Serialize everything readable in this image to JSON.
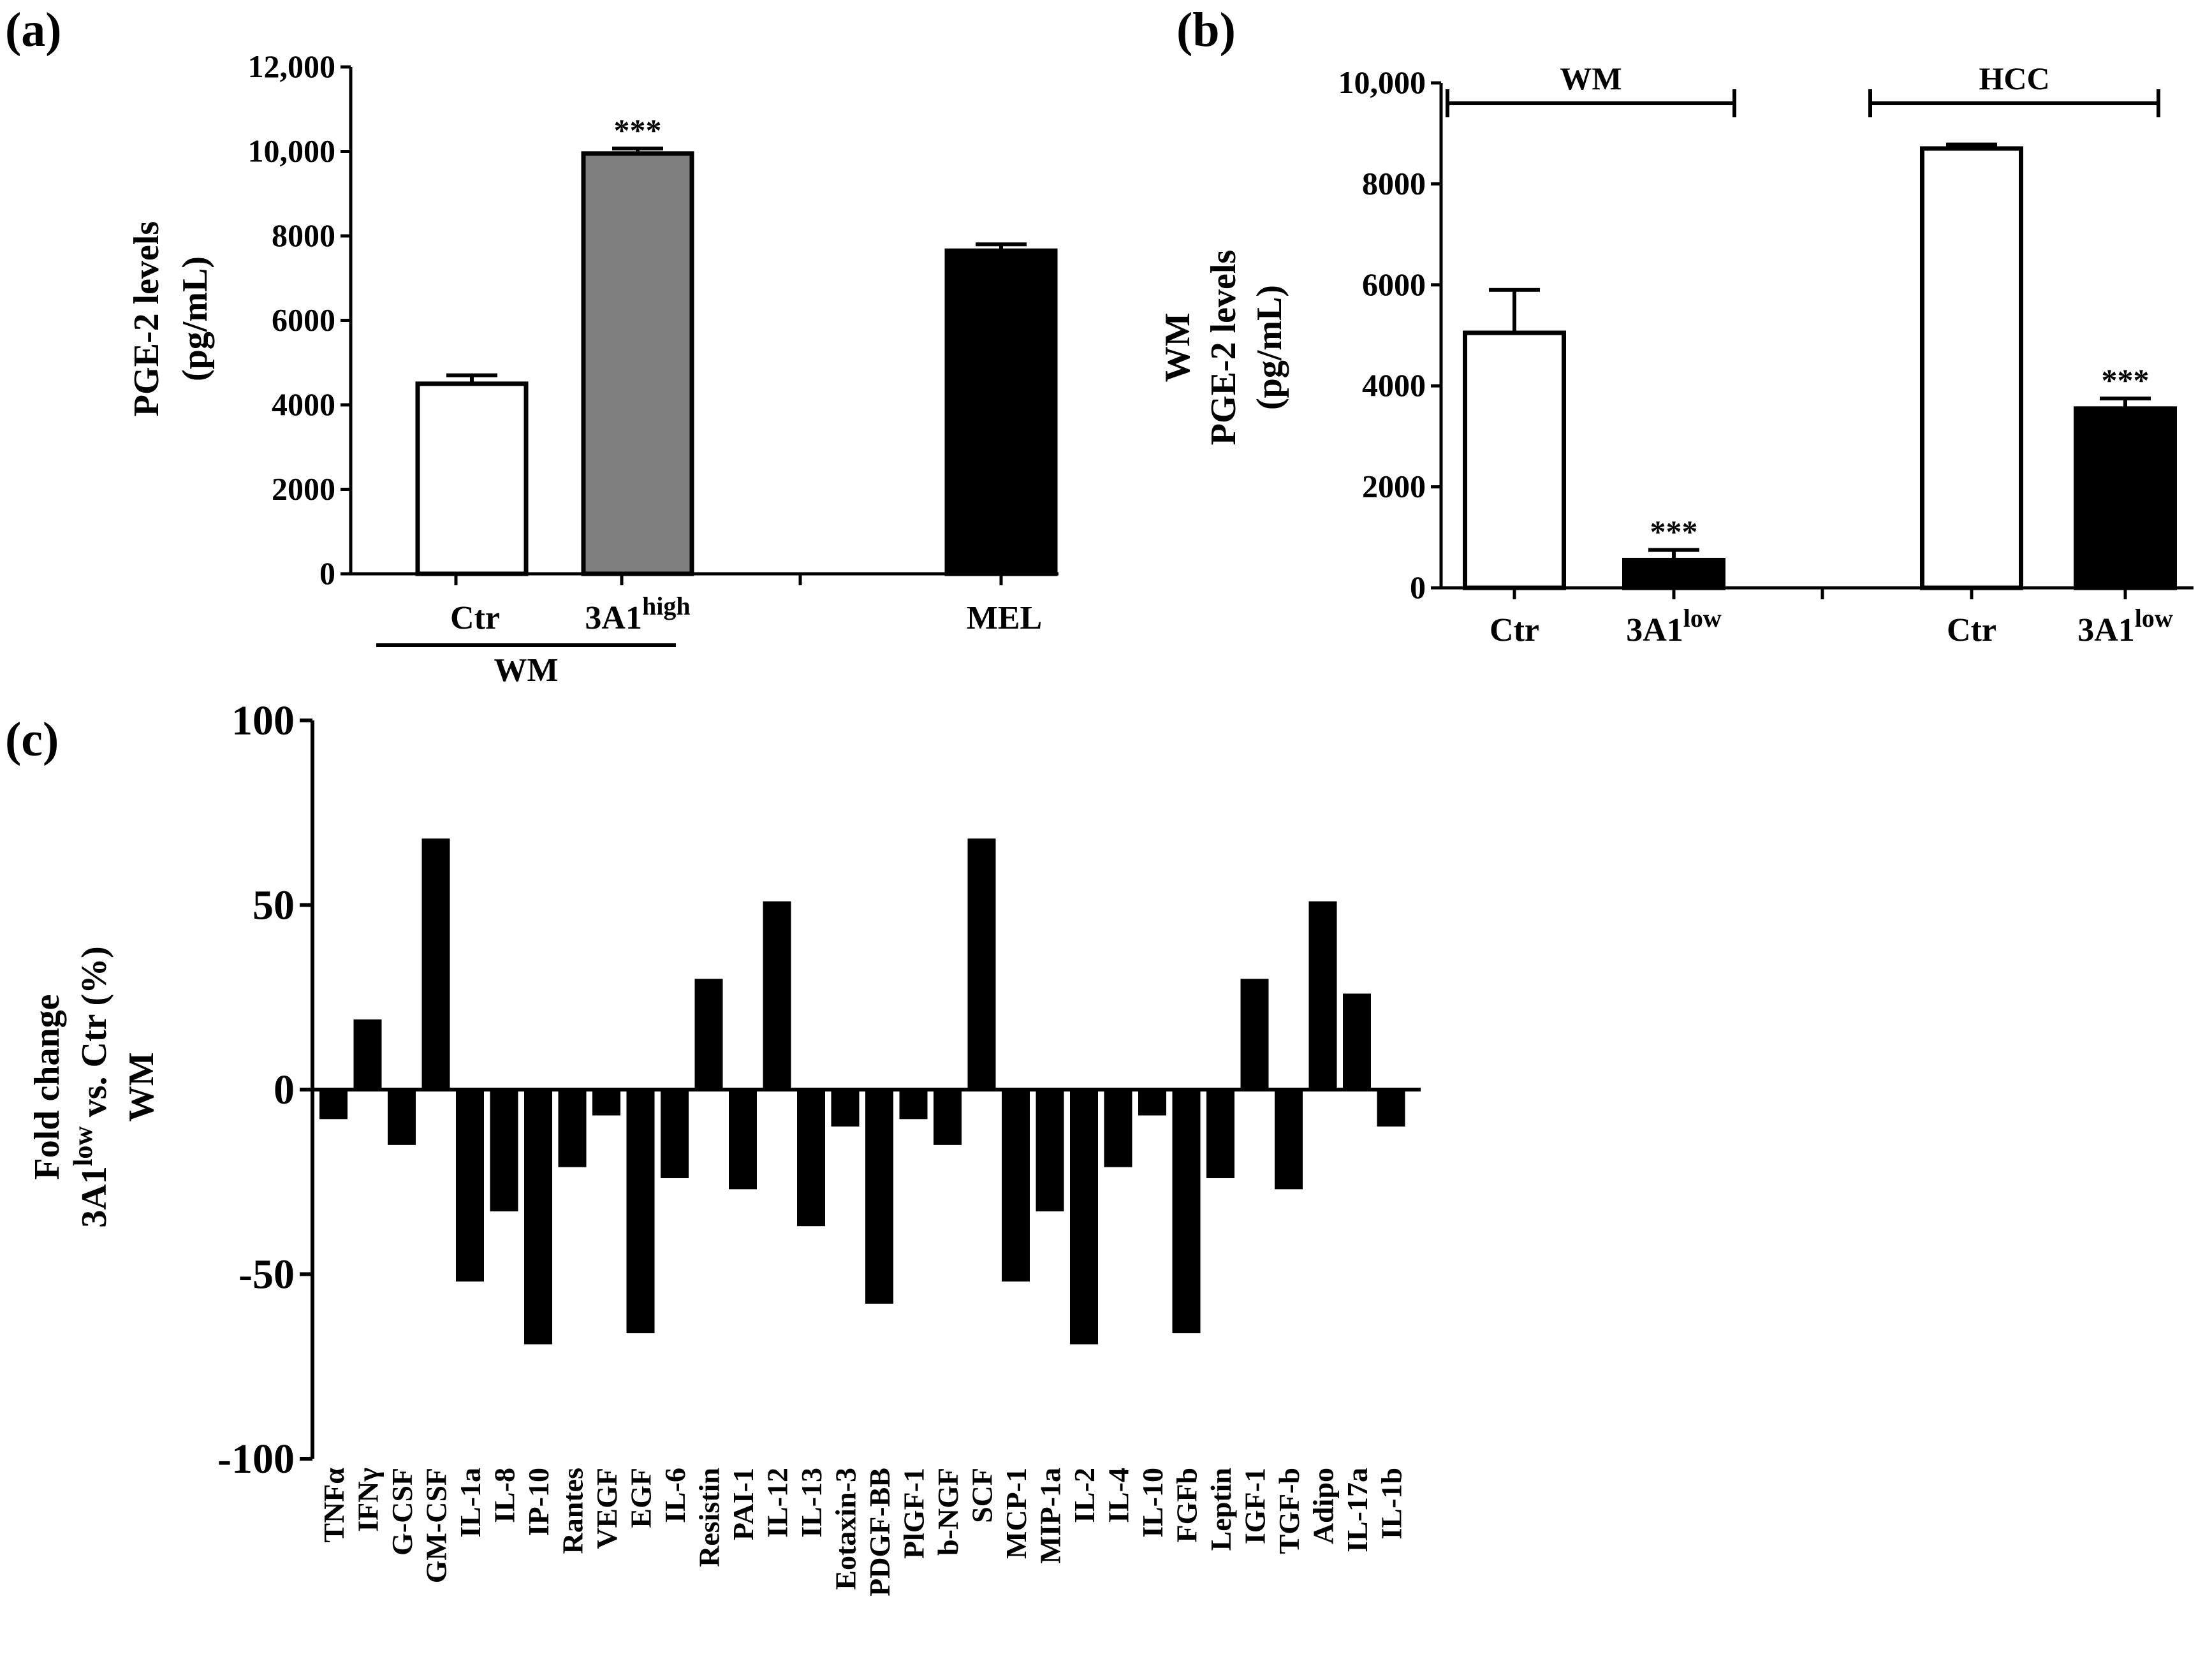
{
  "panels": {
    "a": "(a)",
    "b": "(b)",
    "c": "(c)"
  },
  "chart_data": [
    {
      "id": "a",
      "type": "bar",
      "ylabel_lines": [
        "PGE-2 levels",
        "(pg/mL)"
      ],
      "ylim": [
        0,
        12000
      ],
      "yticks": [
        0,
        2000,
        4000,
        6000,
        8000,
        10000,
        12000
      ],
      "ytick_labels": [
        "0",
        "2000",
        "4000",
        "6000",
        "8000",
        "10,000",
        "12,000"
      ],
      "categories": [
        "Ctr",
        "3A1",
        "MEL"
      ],
      "category_sup": [
        "",
        "high",
        ""
      ],
      "values": [
        4500,
        9950,
        7650
      ],
      "errors": [
        200,
        120,
        150
      ],
      "colors": [
        "#ffffff",
        "#7f7f7f",
        "#000000"
      ],
      "annotations": [
        "",
        "***",
        ""
      ],
      "group_label": "WM",
      "colors_stroke": "#000000"
    },
    {
      "id": "b",
      "type": "bar",
      "ylabel_lines": [
        "WM",
        "PGE-2 levels",
        "(pg/mL)"
      ],
      "ylim": [
        0,
        10000
      ],
      "yticks": [
        0,
        2000,
        4000,
        6000,
        8000,
        10000
      ],
      "ytick_labels": [
        "0",
        "2000",
        "4000",
        "6000",
        "8000",
        "10,000"
      ],
      "categories": [
        "Ctr",
        "3A1",
        "Ctr",
        "3A1"
      ],
      "category_sup": [
        "",
        "low",
        "",
        "low"
      ],
      "values": [
        5050,
        550,
        8700,
        3550
      ],
      "errors": [
        850,
        200,
        80,
        200
      ],
      "colors": [
        "#ffffff",
        "#000000",
        "#ffffff",
        "#000000"
      ],
      "annotations": [
        "",
        "***",
        "",
        "***"
      ],
      "group_labels": [
        "WM",
        "HCC"
      ]
    },
    {
      "id": "c",
      "type": "bar",
      "ylabel_lines": [
        "Fold change",
        "3A1",
        "vs. Ctr (%)",
        "WM"
      ],
      "ylabel_sup": "low",
      "ylim": [
        -100,
        100
      ],
      "yticks": [
        -100,
        -50,
        0,
        50,
        100
      ],
      "ytick_labels": [
        "-100",
        "-50",
        "0",
        "50",
        "100"
      ],
      "categories": [
        "TNFα",
        "IFNγ",
        "G-CSF",
        "GM-CSF",
        "IL-1a",
        "IL-8",
        "IP-10",
        "Rantes",
        "VEGF",
        "EGF",
        "IL-6",
        "Resistin",
        "PAI-1",
        "IL-12",
        "IL-13",
        "Eotaxin-3",
        "PDGF-BB",
        "PlGF-1",
        "b-NGF",
        "SCF",
        "MCP-1",
        "MIP-1a",
        "IL-2",
        "IL-4",
        "IL-10",
        "FGFb",
        "Leptin",
        "IGF-1",
        "TGF-b",
        "Adipo",
        "IL-17a",
        "IL-1b"
      ],
      "values": [
        -8,
        19,
        -15,
        68,
        -52,
        -33,
        -69,
        -21,
        -7,
        -66,
        -24,
        30,
        -27,
        51,
        -37,
        -10,
        -58,
        -8,
        -15,
        68,
        -52,
        -33,
        -69,
        -21,
        -7,
        -66,
        -24,
        30,
        -27,
        51,
        26,
        -10
      ],
      "color": "#000000"
    }
  ]
}
